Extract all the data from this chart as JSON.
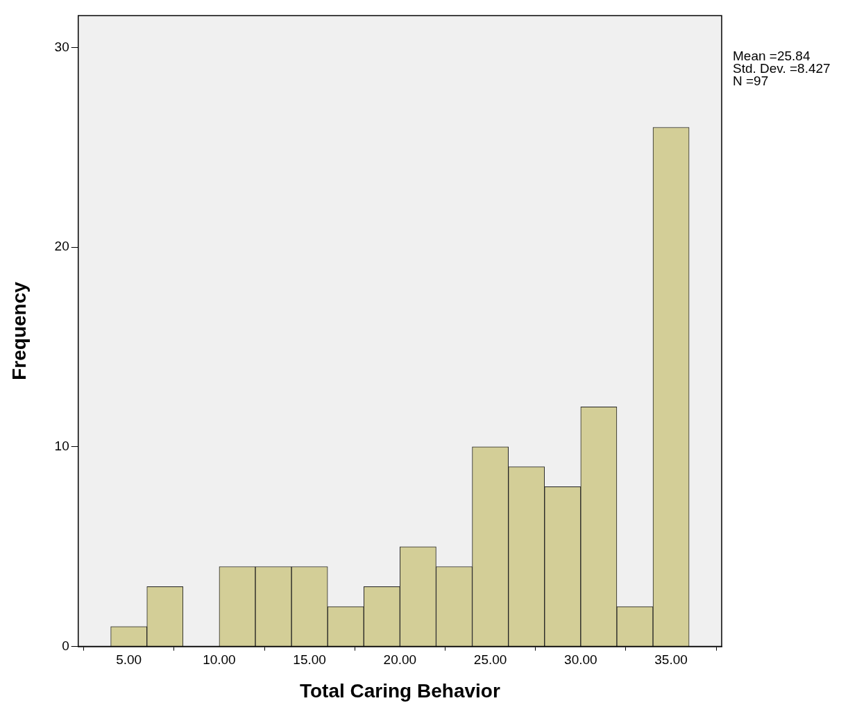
{
  "chart_data": {
    "type": "histogram",
    "xlabel": "Total Caring Behavior",
    "ylabel": "Frequency",
    "bins": [
      4,
      6,
      8,
      10,
      12,
      14,
      16,
      18,
      20,
      22,
      24,
      26,
      28,
      30,
      32,
      34,
      36
    ],
    "values": [
      1,
      3,
      0,
      4,
      4,
      4,
      2,
      3,
      5,
      4,
      10,
      9,
      8,
      12,
      2,
      26
    ],
    "color": "#d3ce97",
    "xlim": [
      2.2,
      37.8
    ],
    "xticks": [
      {
        "value": 5,
        "label": "5.00"
      },
      {
        "value": 10,
        "label": "10.00"
      },
      {
        "value": 15,
        "label": "15.00"
      },
      {
        "value": 20,
        "label": "20.00"
      },
      {
        "value": 25,
        "label": "25.00"
      },
      {
        "value": 30,
        "label": "30.00"
      },
      {
        "value": 35,
        "label": "35.00"
      }
    ],
    "ylim": [
      0,
      31.6
    ],
    "yticks": [
      0,
      10,
      20,
      30
    ],
    "legend": false,
    "annotations": [
      "Mean =25.84",
      "Std. Dev. =8.427",
      "N =97"
    ]
  }
}
